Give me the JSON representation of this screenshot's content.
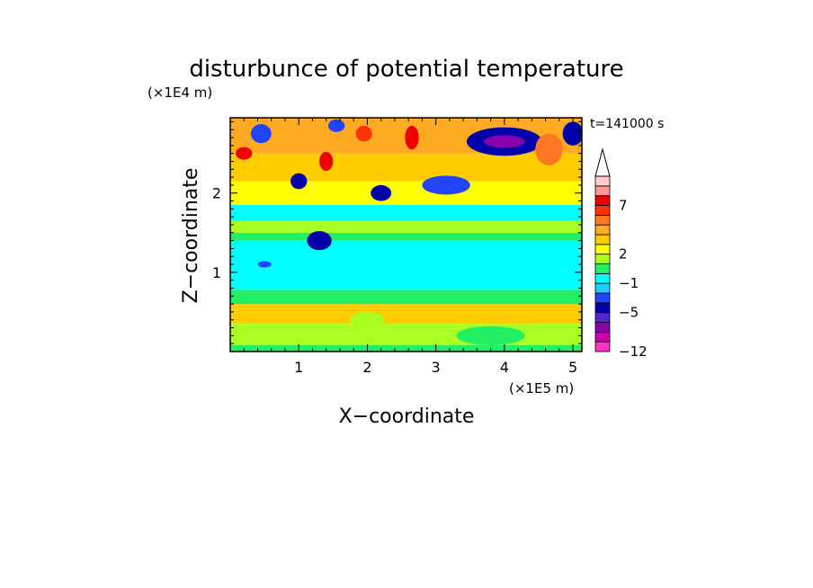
{
  "chart_data": {
    "type": "heatmap",
    "title": "disturbunce of potential temperature",
    "xlabel": "X−coordinate",
    "ylabel": "Z−coordinate",
    "x_unit": "(×1E5 m)",
    "y_unit": "(×1E4 m)",
    "time_label": "t=141000 s",
    "xlim": [
      0,
      5.13
    ],
    "ylim": [
      0,
      2.95
    ],
    "x_ticks": [
      1,
      2,
      3,
      4,
      5
    ],
    "y_ticks": [
      1,
      2
    ],
    "colorbar": {
      "extend": "max",
      "tick_labels": [
        {
          "value": 7,
          "text": "7"
        },
        {
          "value": 2,
          "text": "2"
        },
        {
          "value": -1,
          "text": "−1"
        },
        {
          "value": -5,
          "text": "−5"
        },
        {
          "value": -12,
          "text": "−12"
        }
      ],
      "levels": [
        {
          "value": -12,
          "color": "#ff33cc"
        },
        {
          "value": -10,
          "color": "#cc00aa"
        },
        {
          "value": -8,
          "color": "#8800aa"
        },
        {
          "value": -6,
          "color": "#5522cc"
        },
        {
          "value": -5,
          "color": "#0000aa"
        },
        {
          "value": -4,
          "color": "#2244ff"
        },
        {
          "value": -2,
          "color": "#22ccff"
        },
        {
          "value": -1,
          "color": "#00ffff"
        },
        {
          "value": 0,
          "color": "#22ee66"
        },
        {
          "value": 1,
          "color": "#aaff22"
        },
        {
          "value": 2,
          "color": "#ffff00"
        },
        {
          "value": 3,
          "color": "#ffcc00"
        },
        {
          "value": 4,
          "color": "#ffaa22"
        },
        {
          "value": 5,
          "color": "#ff7722"
        },
        {
          "value": 6,
          "color": "#ff3300"
        },
        {
          "value": 7,
          "color": "#ee0000"
        },
        {
          "value": 8,
          "color": "#ff9999"
        },
        {
          "value": 9,
          "color": "#ffcccc"
        }
      ]
    },
    "field_bands": [
      {
        "z": [
          0.0,
          0.08
        ],
        "value": 0
      },
      {
        "z": [
          0.08,
          0.35
        ],
        "value": 1
      },
      {
        "z": [
          0.35,
          0.6
        ],
        "value": 3
      },
      {
        "z": [
          0.6,
          0.78
        ],
        "value": 0
      },
      {
        "z": [
          0.78,
          1.05
        ],
        "value": -1
      },
      {
        "z": [
          1.05,
          1.4
        ],
        "value": -1
      },
      {
        "z": [
          1.4,
          1.5
        ],
        "value": 0
      },
      {
        "z": [
          1.5,
          1.65
        ],
        "value": 1
      },
      {
        "z": [
          1.65,
          1.85
        ],
        "value": -1
      },
      {
        "z": [
          1.85,
          2.15
        ],
        "value": 2
      },
      {
        "z": [
          2.15,
          2.5
        ],
        "value": 3
      },
      {
        "z": [
          2.5,
          2.95
        ],
        "value": 4
      }
    ],
    "features": [
      {
        "x": 4.0,
        "z": 2.65,
        "rx": 0.55,
        "rz": 0.18,
        "value": -5
      },
      {
        "x": 4.0,
        "z": 2.65,
        "rx": 0.3,
        "rz": 0.08,
        "value": -8
      },
      {
        "x": 5.0,
        "z": 2.75,
        "rx": 0.15,
        "rz": 0.15,
        "value": -5
      },
      {
        "x": 3.15,
        "z": 2.1,
        "rx": 0.35,
        "rz": 0.12,
        "value": -4
      },
      {
        "x": 2.65,
        "z": 2.7,
        "rx": 0.1,
        "rz": 0.15,
        "value": 7
      },
      {
        "x": 1.95,
        "z": 2.75,
        "rx": 0.12,
        "rz": 0.1,
        "value": 6
      },
      {
        "x": 0.45,
        "z": 2.75,
        "rx": 0.15,
        "rz": 0.12,
        "value": -4
      },
      {
        "x": 1.55,
        "z": 2.85,
        "rx": 0.12,
        "rz": 0.08,
        "value": -4
      },
      {
        "x": 0.5,
        "z": 1.1,
        "rx": 0.1,
        "rz": 0.04,
        "value": -4
      },
      {
        "x": 1.3,
        "z": 1.4,
        "rx": 0.18,
        "rz": 0.12,
        "value": -5
      },
      {
        "x": 2.2,
        "z": 2.0,
        "rx": 0.15,
        "rz": 0.1,
        "value": -5
      },
      {
        "x": 1.0,
        "z": 2.15,
        "rx": 0.12,
        "rz": 0.1,
        "value": -5
      },
      {
        "x": 1.4,
        "z": 2.4,
        "rx": 0.1,
        "rz": 0.12,
        "value": 7
      },
      {
        "x": 0.2,
        "z": 2.5,
        "rx": 0.12,
        "rz": 0.08,
        "value": 7
      },
      {
        "x": 4.65,
        "z": 2.55,
        "rx": 0.2,
        "rz": 0.2,
        "value": 5
      },
      {
        "x": 3.8,
        "z": 0.2,
        "rx": 0.5,
        "rz": 0.12,
        "value": 0
      },
      {
        "x": 2.0,
        "z": 0.4,
        "rx": 0.25,
        "rz": 0.1,
        "value": 1
      }
    ]
  }
}
